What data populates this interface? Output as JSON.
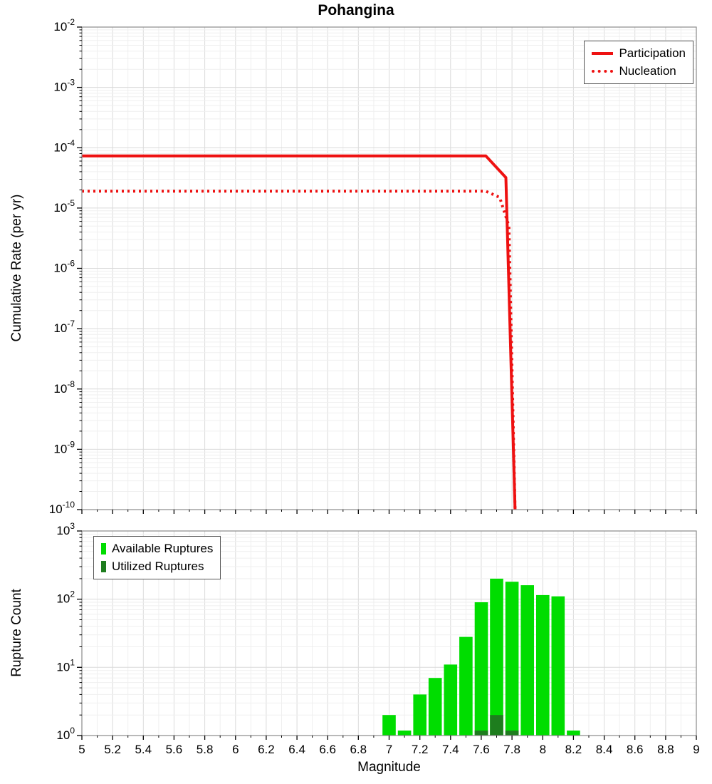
{
  "title": "Pohangina",
  "colors": {
    "line_red": "#ee1111",
    "available_green": "#00dd00",
    "utilized_green": "#1e7d1e",
    "grid_minor": "#efefef",
    "grid_major": "#dadada",
    "plot_border": "#8a8a8a"
  },
  "chart_data": [
    {
      "type": "line",
      "title": "Pohangina",
      "xlabel": "Magnitude",
      "ylabel": "Cumulative Rate (per yr)",
      "xlim": [
        5,
        9
      ],
      "ylog_exponent_range": [
        -10,
        -2
      ],
      "grid": true,
      "legend_position": "top-right",
      "x_tick_labels": [
        "5",
        "5.2",
        "5.4",
        "5.6",
        "5.8",
        "6",
        "6.2",
        "6.4",
        "6.6",
        "6.8",
        "7",
        "7.2",
        "7.4",
        "7.6",
        "7.8",
        "8",
        "8.2",
        "8.4",
        "8.6",
        "8.8",
        "9"
      ],
      "series": [
        {
          "name": "Participation",
          "style": "solid",
          "color": "#ee1111",
          "points": [
            [
              5.0,
              7.3e-05
            ],
            [
              7.63,
              7.3e-05
            ],
            [
              7.76,
              3.2e-05
            ],
            [
              7.82,
              1e-10
            ]
          ]
        },
        {
          "name": "Nucleation",
          "style": "dotted",
          "color": "#ee1111",
          "points": [
            [
              5.0,
              1.9e-05
            ],
            [
              7.63,
              1.9e-05
            ],
            [
              7.72,
              1.5e-05
            ],
            [
              7.78,
              5e-06
            ],
            [
              7.82,
              1e-10
            ]
          ]
        }
      ]
    },
    {
      "type": "bar",
      "title": "",
      "xlabel": "Magnitude",
      "ylabel": "Rupture Count",
      "xlim": [
        5,
        9
      ],
      "ylog_exponent_range": [
        0,
        3
      ],
      "grid": true,
      "legend_position": "top-left",
      "bin_width": 0.1,
      "x_tick_labels": [
        "5",
        "5.2",
        "5.4",
        "5.6",
        "5.8",
        "6",
        "6.2",
        "6.4",
        "6.6",
        "6.8",
        "7",
        "7.2",
        "7.4",
        "7.6",
        "7.8",
        "8",
        "8.2",
        "8.4",
        "8.6",
        "8.8",
        "9"
      ],
      "categories": [
        7.0,
        7.1,
        7.2,
        7.3,
        7.4,
        7.5,
        7.6,
        7.7,
        7.8,
        7.9,
        8.0,
        8.1,
        8.2
      ],
      "series": [
        {
          "name": "Available Ruptures",
          "color": "#00dd00",
          "values": [
            2,
            1,
            4,
            7,
            11,
            28,
            90,
            200,
            180,
            160,
            115,
            110,
            1
          ]
        },
        {
          "name": "Utilized Ruptures",
          "color": "#1e7d1e",
          "values": [
            0,
            0,
            0,
            0,
            0,
            0,
            1,
            2,
            1,
            0,
            0,
            0,
            0
          ]
        }
      ]
    }
  ]
}
